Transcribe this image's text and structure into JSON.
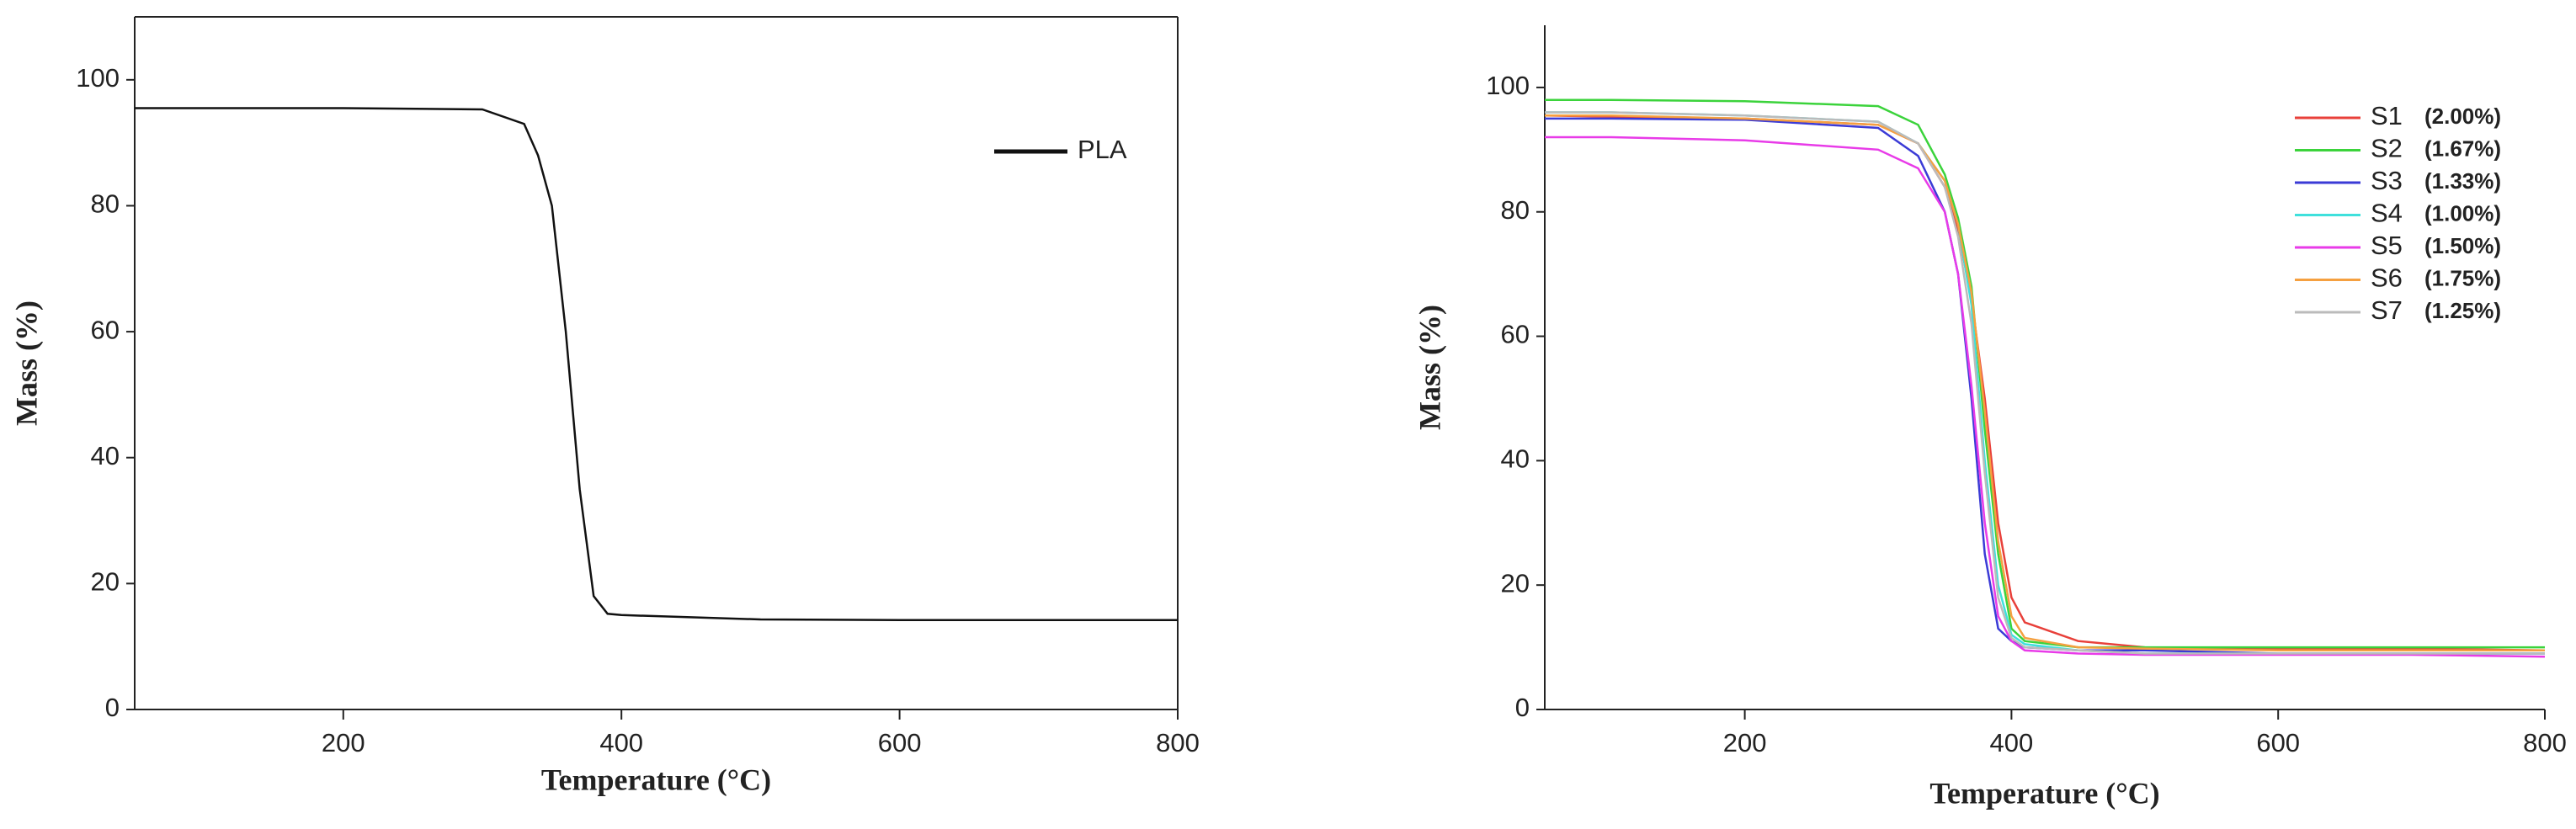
{
  "chart_data": [
    {
      "type": "line",
      "xlabel": "Temperature (°C)",
      "ylabel": "Mass (%)",
      "xlim": [
        50,
        800
      ],
      "ylim": [
        0,
        110
      ],
      "xticks": [
        200,
        400,
        600,
        800
      ],
      "yticks": [
        0,
        20,
        40,
        60,
        80,
        100
      ],
      "box": true,
      "legend": "upper right",
      "x": [
        50,
        100,
        200,
        300,
        330,
        340,
        350,
        360,
        370,
        380,
        390,
        400,
        500,
        600,
        700,
        800
      ],
      "series": [
        {
          "name": "PLA",
          "color": "#111111",
          "values": [
            95.5,
            95.5,
            95.5,
            95.3,
            93,
            88,
            80,
            60,
            35,
            18,
            15.2,
            15,
            14.3,
            14.2,
            14.2,
            14.2
          ]
        }
      ]
    },
    {
      "type": "line",
      "xlabel": "Temperature (°C)",
      "ylabel": "Mass (%)",
      "xlim": [
        50,
        800
      ],
      "ylim": [
        0,
        110
      ],
      "xticks": [
        200,
        400,
        600,
        800
      ],
      "yticks": [
        0,
        20,
        40,
        60,
        80,
        100
      ],
      "box": false,
      "legend": "upper right",
      "x": [
        50,
        100,
        200,
        300,
        330,
        350,
        360,
        370,
        380,
        390,
        400,
        410,
        450,
        500,
        600,
        700,
        800
      ],
      "series": [
        {
          "name": "S1",
          "label": "(2.00%)",
          "color": "#e8403a",
          "values": [
            95.5,
            95.3,
            95,
            94,
            91,
            84,
            77,
            66,
            50,
            30,
            18,
            14,
            11,
            10,
            9.8,
            9.8,
            9.5
          ]
        },
        {
          "name": "S2",
          "label": "(1.67%)",
          "color": "#3bd33b",
          "values": [
            98,
            98,
            97.8,
            97,
            94,
            86,
            79,
            68,
            45,
            25,
            13,
            11,
            10,
            10,
            10,
            10,
            10
          ]
        },
        {
          "name": "S3",
          "label": "(1.33%)",
          "color": "#3b3bd6",
          "values": [
            95,
            95,
            94.8,
            93.5,
            89,
            80,
            70,
            50,
            25,
            13,
            11,
            10,
            9.5,
            9.5,
            9,
            9,
            9
          ]
        },
        {
          "name": "S4",
          "label": "(1.00%)",
          "color": "#3fe0dc",
          "values": [
            96,
            96,
            95.5,
            94.5,
            91,
            85,
            78,
            65,
            40,
            20,
            12,
            10.5,
            9.5,
            9,
            9,
            9,
            9
          ]
        },
        {
          "name": "S5",
          "label": "(1.50%)",
          "color": "#e83be8",
          "values": [
            92,
            92,
            91.5,
            90,
            87,
            80,
            70,
            52,
            30,
            15,
            11,
            9.5,
            9,
            8.8,
            8.8,
            8.8,
            8.5
          ]
        },
        {
          "name": "S6",
          "label": "(1.75%)",
          "color": "#f5a040",
          "values": [
            95.5,
            95.5,
            95,
            94,
            91,
            85,
            78,
            67,
            48,
            27,
            15,
            11.5,
            10,
            9.8,
            9.5,
            9.5,
            9.5
          ]
        },
        {
          "name": "S7",
          "label": "(1.25%)",
          "color": "#bbbbbb",
          "values": [
            96,
            96,
            95.5,
            94.5,
            91,
            84,
            76,
            62,
            38,
            18,
            11.5,
            10,
            9.5,
            9,
            9,
            9,
            9
          ]
        }
      ]
    }
  ]
}
